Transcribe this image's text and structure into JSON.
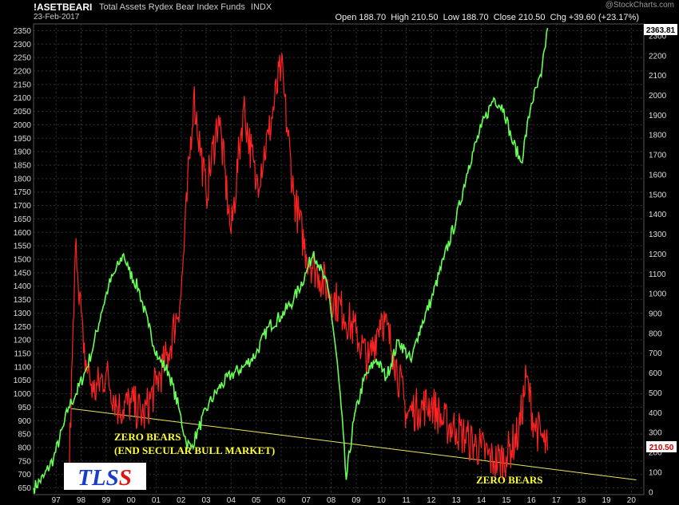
{
  "header": {
    "symbol": "!ASETBEARI",
    "description": "Total Assets Rydex Bear Index Funds",
    "exchange": "INDX",
    "date": "23-Feb-2017",
    "open_label": "Open",
    "open": "188.70",
    "high_label": "High",
    "high": "210.50",
    "low_label": "Low",
    "low": "188.70",
    "close_label": "Close",
    "close": "210.50",
    "chg_label": "Chg",
    "chg": "+39.60 (+23.17%)",
    "watermark": "@StockCharts.com"
  },
  "badges": {
    "left_last": "2363.81",
    "right_last": "210.50"
  },
  "annotations": {
    "zero_bears_1": "ZERO BEARS",
    "end_secular": "(END SECULAR  BULL MARKET)",
    "zero_bears_2": "ZERO BEARS",
    "logo": "TLSS"
  },
  "colors": {
    "background": "#000000",
    "green_series": "#66ff55",
    "red_series": "#ff2222",
    "trendline": "#e8e85a",
    "annotation_text": "#ffff33",
    "logo_blue": "#1a3ccc",
    "logo_red": "#e01010"
  },
  "chart_data": {
    "type": "line",
    "x_ticks": [
      "97",
      "98",
      "99",
      "00",
      "01",
      "02",
      "03",
      "04",
      "05",
      "06",
      "07",
      "08",
      "09",
      "10",
      "11",
      "12",
      "13",
      "14",
      "15",
      "16",
      "17",
      "18",
      "19",
      "20"
    ],
    "left_axis": {
      "ticks": [
        650,
        700,
        750,
        800,
        850,
        900,
        950,
        1000,
        1050,
        1100,
        1150,
        1200,
        1250,
        1300,
        1350,
        1400,
        1450,
        1500,
        1550,
        1600,
        1650,
        1700,
        1750,
        1800,
        1850,
        1900,
        1950,
        2000,
        2050,
        2100,
        2150,
        2200,
        2250,
        2300,
        2350
      ],
      "range": [
        625,
        2375
      ]
    },
    "right_axis": {
      "ticks": [
        0,
        100,
        200,
        300,
        400,
        500,
        600,
        700,
        800,
        900,
        1000,
        1100,
        1200,
        1300,
        1400,
        1500,
        1600,
        1700,
        1800,
        1900,
        2000,
        2100,
        2200,
        2300
      ],
      "range": [
        -13,
        2360
      ]
    },
    "series": [
      {
        "axis": "left",
        "color": "#66ff55",
        "points": [
          [
            1996.6,
            650
          ],
          [
            1997.0,
            690
          ],
          [
            1997.4,
            760
          ],
          [
            1997.8,
            880
          ],
          [
            1998.0,
            950
          ],
          [
            1998.3,
            1000
          ],
          [
            1998.7,
            1090
          ],
          [
            1999.0,
            1180
          ],
          [
            1999.3,
            1300
          ],
          [
            1999.6,
            1400
          ],
          [
            2000.0,
            1480
          ],
          [
            2000.2,
            1520
          ],
          [
            2000.4,
            1460
          ],
          [
            2000.8,
            1390
          ],
          [
            2001.2,
            1250
          ],
          [
            2001.6,
            1130
          ],
          [
            2002.0,
            1080
          ],
          [
            2002.4,
            950
          ],
          [
            2002.7,
            820
          ],
          [
            2002.9,
            800
          ],
          [
            2003.2,
            870
          ],
          [
            2003.6,
            960
          ],
          [
            2004.0,
            1020
          ],
          [
            2004.5,
            1070
          ],
          [
            2005.0,
            1100
          ],
          [
            2005.5,
            1150
          ],
          [
            2006.0,
            1250
          ],
          [
            2006.5,
            1290
          ],
          [
            2007.0,
            1350
          ],
          [
            2007.5,
            1450
          ],
          [
            2007.8,
            1530
          ],
          [
            2008.0,
            1480
          ],
          [
            2008.4,
            1380
          ],
          [
            2008.7,
            1150
          ],
          [
            2008.9,
            950
          ],
          [
            2009.1,
            680
          ],
          [
            2009.4,
            900
          ],
          [
            2009.8,
            1050
          ],
          [
            2010.3,
            1130
          ],
          [
            2010.7,
            1060
          ],
          [
            2011.2,
            1200
          ],
          [
            2011.7,
            1120
          ],
          [
            2012.0,
            1230
          ],
          [
            2012.5,
            1350
          ],
          [
            2013.0,
            1500
          ],
          [
            2013.5,
            1650
          ],
          [
            2014.0,
            1850
          ],
          [
            2014.5,
            1990
          ],
          [
            2015.0,
            2100
          ],
          [
            2015.4,
            2060
          ],
          [
            2015.7,
            1950
          ],
          [
            2016.1,
            1860
          ],
          [
            2016.5,
            2080
          ],
          [
            2016.9,
            2180
          ],
          [
            2017.15,
            2360
          ]
        ]
      },
      {
        "axis": "right",
        "color": "#ff2222",
        "points": [
          [
            1998.0,
            20
          ],
          [
            1998.3,
            1280
          ],
          [
            1998.6,
            700
          ],
          [
            1999.0,
            500
          ],
          [
            1999.5,
            600
          ],
          [
            2000.0,
            420
          ],
          [
            2000.5,
            450
          ],
          [
            2001.0,
            380
          ],
          [
            2001.5,
            540
          ],
          [
            2002.0,
            700
          ],
          [
            2002.5,
            1000
          ],
          [
            2003.0,
            2000
          ],
          [
            2003.5,
            1500
          ],
          [
            2004.0,
            1900
          ],
          [
            2004.5,
            1300
          ],
          [
            2005.0,
            1950
          ],
          [
            2005.5,
            1550
          ],
          [
            2006.0,
            1800
          ],
          [
            2006.5,
            2150
          ],
          [
            2007.0,
            1500
          ],
          [
            2007.5,
            1200
          ],
          [
            2008.0,
            1100
          ],
          [
            2008.5,
            1000
          ],
          [
            2009.0,
            900
          ],
          [
            2009.5,
            800
          ],
          [
            2010.0,
            650
          ],
          [
            2010.5,
            900
          ],
          [
            2011.0,
            700
          ],
          [
            2011.5,
            400
          ],
          [
            2012.0,
            420
          ],
          [
            2012.5,
            450
          ],
          [
            2013.0,
            350
          ],
          [
            2013.5,
            320
          ],
          [
            2014.0,
            260
          ],
          [
            2014.5,
            220
          ],
          [
            2015.0,
            150
          ],
          [
            2015.5,
            180
          ],
          [
            2016.0,
            300
          ],
          [
            2016.3,
            580
          ],
          [
            2016.6,
            350
          ],
          [
            2017.0,
            250
          ],
          [
            2017.15,
            210
          ]
        ]
      }
    ],
    "trendline": [
      [
        1998.1,
        945
      ],
      [
        2020.7,
        680
      ]
    ]
  }
}
